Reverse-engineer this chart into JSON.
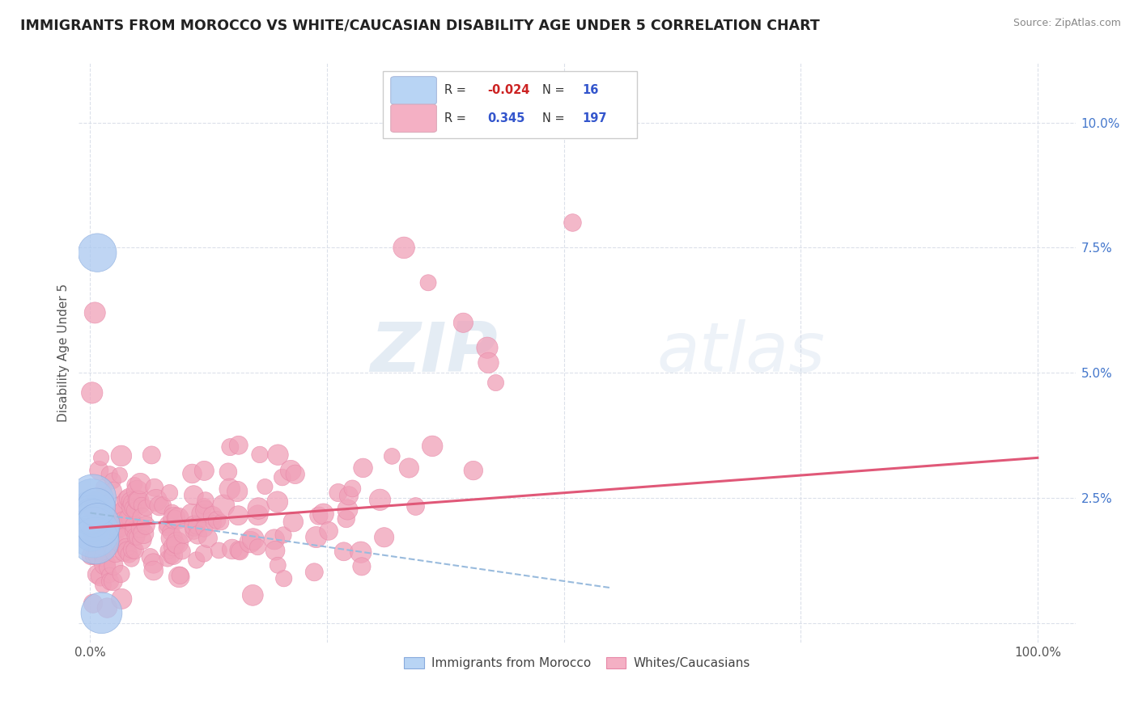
{
  "title": "IMMIGRANTS FROM MOROCCO VS WHITE/CAUCASIAN DISABILITY AGE UNDER 5 CORRELATION CHART",
  "source": "Source: ZipAtlas.com",
  "ylabel": "Disability Age Under 5",
  "watermark_zip": "ZIP",
  "watermark_atlas": "atlas",
  "color_blue_fill": "#aac8f0",
  "color_blue_edge": "#88aadd",
  "color_pink_fill": "#f0a0b8",
  "color_pink_edge": "#e888a8",
  "line_blue": "#99bbdd",
  "line_pink": "#e05878",
  "legend_blue_fill": "#b8d4f4",
  "legend_pink_fill": "#f4b0c4",
  "ytick_color": "#4477cc",
  "grid_color": "#d8dde8",
  "title_color": "#222222",
  "source_color": "#888888",
  "ylabel_color": "#555555"
}
